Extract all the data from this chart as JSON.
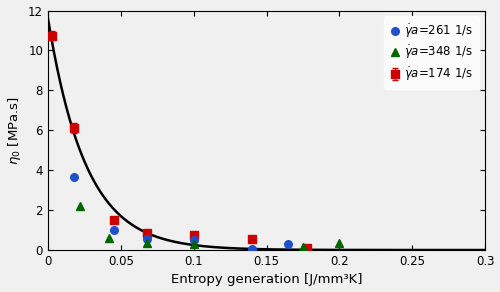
{
  "title": "",
  "xlabel": "Entropy generation [J/mm³K]",
  "ylabel": "$\\eta_0$ [MPa.s]",
  "xlim": [
    0,
    0.3
  ],
  "ylim": [
    0,
    12
  ],
  "yticks": [
    0,
    2,
    4,
    6,
    8,
    10,
    12
  ],
  "xticks": [
    0,
    0.05,
    0.1,
    0.15,
    0.2,
    0.25,
    0.3
  ],
  "series_174_x": [
    0.003,
    0.018,
    0.045,
    0.068,
    0.1,
    0.14,
    0.178
  ],
  "series_174_y": [
    10.75,
    6.1,
    1.5,
    0.85,
    0.75,
    0.55,
    0.1
  ],
  "series_174_yerr": [
    0.25,
    0.25,
    0,
    0,
    0,
    0,
    0
  ],
  "series_174_color": "#cc0000",
  "series_174_marker": "s",
  "series_174_label": "$\\dot{\\gamma}a$=174 1/s",
  "series_261_x": [
    0.018,
    0.045,
    0.068,
    0.1,
    0.14,
    0.165
  ],
  "series_261_y": [
    3.65,
    1.0,
    0.55,
    0.48,
    0.05,
    0.28
  ],
  "series_261_color": "#1f4fcc",
  "series_261_marker": "o",
  "series_261_label": "$\\dot{\\gamma}a$=261 1/s",
  "series_348_x": [
    0.022,
    0.042,
    0.068,
    0.1,
    0.175,
    0.2
  ],
  "series_348_y": [
    2.2,
    0.6,
    0.35,
    0.28,
    0.15,
    0.35
  ],
  "series_348_color": "#006600",
  "series_348_marker": "^",
  "series_348_label": "$\\dot{\\gamma}a$=348 1/s",
  "fit_A": 11.0,
  "fit_b": 38.0,
  "background_color": "#f0f0f0",
  "legend_fontsize": 8.5,
  "axis_fontsize": 9.5,
  "tick_fontsize": 8.5,
  "markersize": 5.5,
  "linewidth": 1.8
}
